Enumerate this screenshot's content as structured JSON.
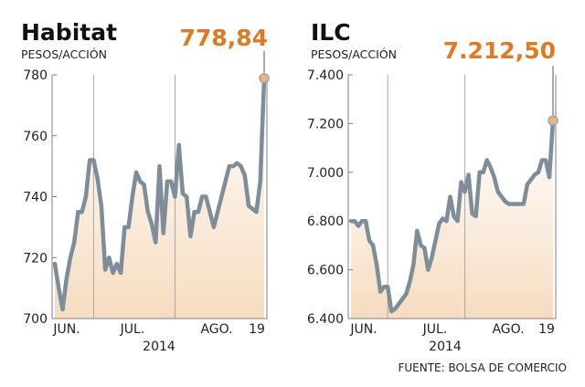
{
  "source": "FUENTE: BOLSA DE COMERCIO",
  "colors": {
    "line": "#7d8d99",
    "highlight": "#e07a22",
    "fill_bottom": "#f6dcc0",
    "frame": "#808080",
    "divider": "#a8a8a8"
  },
  "chart_data": [
    {
      "type": "area",
      "title": "Habitat",
      "ylabel": "PESOS/ACCIÓN",
      "highlight_value": "778,84",
      "ylim": [
        700,
        780
      ],
      "y_ticks": [
        700,
        720,
        740,
        760,
        780
      ],
      "y_tick_labels": [
        "700",
        "720",
        "740",
        "760",
        "780"
      ],
      "x_labels": [
        "JUN.",
        "JUL.",
        "AGO.",
        "19"
      ],
      "year_label": "2014",
      "month_starts": [
        10,
        31
      ],
      "values": [
        718,
        710,
        703,
        713,
        720,
        725,
        735,
        735,
        740,
        752,
        752,
        746,
        737,
        716,
        720,
        715,
        718,
        715,
        730,
        730,
        740,
        748,
        745,
        744,
        735,
        731,
        725,
        750,
        728,
        745,
        745,
        740,
        757,
        741,
        740,
        727,
        735,
        735,
        740,
        740,
        735,
        730,
        735,
        740,
        745,
        750,
        750,
        751,
        750,
        747,
        737,
        736,
        735,
        745,
        778.84
      ]
    },
    {
      "type": "area",
      "title": "ILC",
      "ylabel": "PESOS/ACCIÓN",
      "highlight_value": "7.212,50",
      "ylim": [
        6400,
        7400
      ],
      "y_ticks": [
        6400,
        6600,
        6800,
        7000,
        7200,
        7400
      ],
      "y_tick_labels": [
        "6.400",
        "6.600",
        "6.800",
        "7.000",
        "7.200",
        "7.400"
      ],
      "x_labels": [
        "JUN.",
        "JUL.",
        "AGO.",
        "19"
      ],
      "year_label": "2014",
      "month_starts": [
        10,
        31
      ],
      "values": [
        6800,
        6800,
        6780,
        6800,
        6800,
        6720,
        6700,
        6620,
        6510,
        6530,
        6530,
        6430,
        6440,
        6460,
        6480,
        6500,
        6550,
        6620,
        6760,
        6700,
        6690,
        6600,
        6650,
        6720,
        6790,
        6810,
        6800,
        6900,
        6820,
        6800,
        6960,
        6920,
        6990,
        6830,
        6820,
        7000,
        7000,
        7050,
        7020,
        6980,
        6920,
        6900,
        6880,
        6870,
        6870,
        6870,
        6870,
        6870,
        6950,
        6970,
        6990,
        7000,
        7050,
        7050,
        6980,
        7212.5
      ]
    }
  ]
}
